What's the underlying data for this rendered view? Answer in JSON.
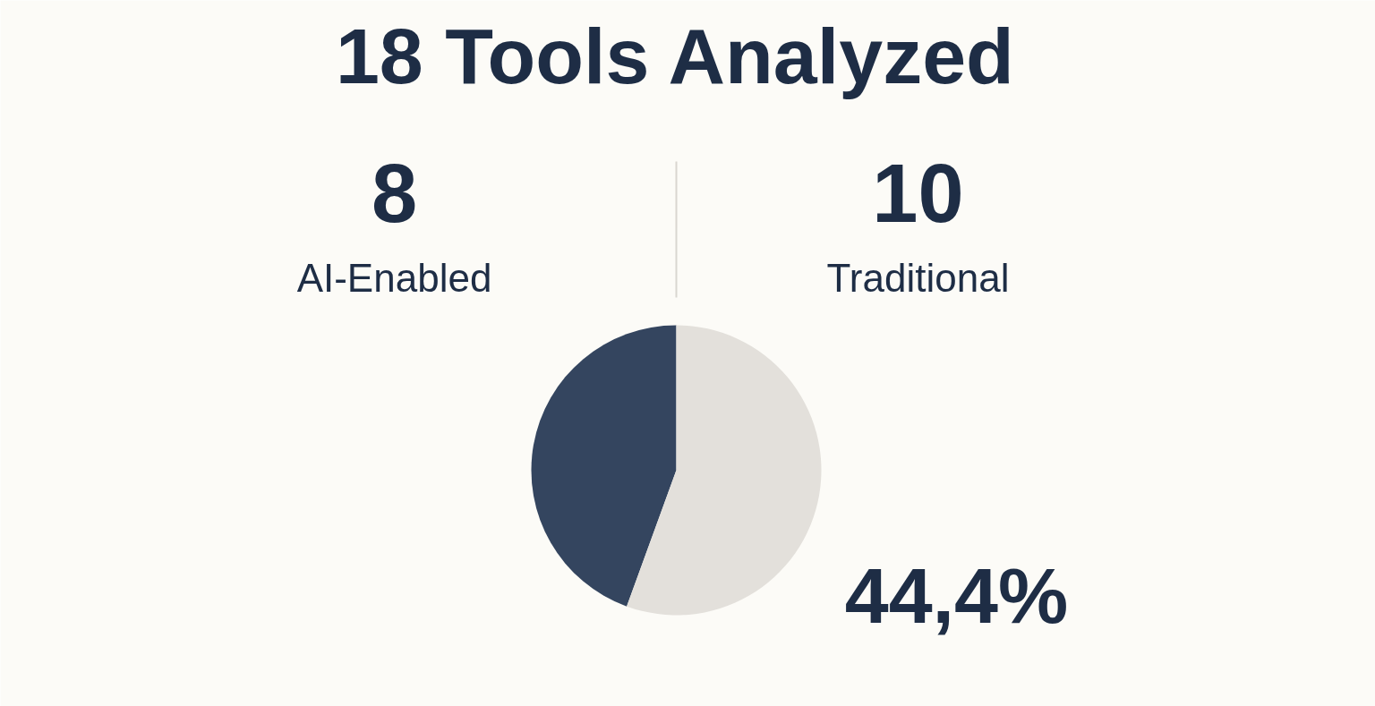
{
  "chart_data": {
    "type": "pie",
    "title": "18 Tools Analyzed",
    "categories": [
      "AI-Enabled",
      "Traditional"
    ],
    "values": [
      8,
      10
    ],
    "colors": [
      "#34455f",
      "#e3e0db"
    ],
    "data_labels": true,
    "annotations": [
      "44,4%"
    ]
  }
}
